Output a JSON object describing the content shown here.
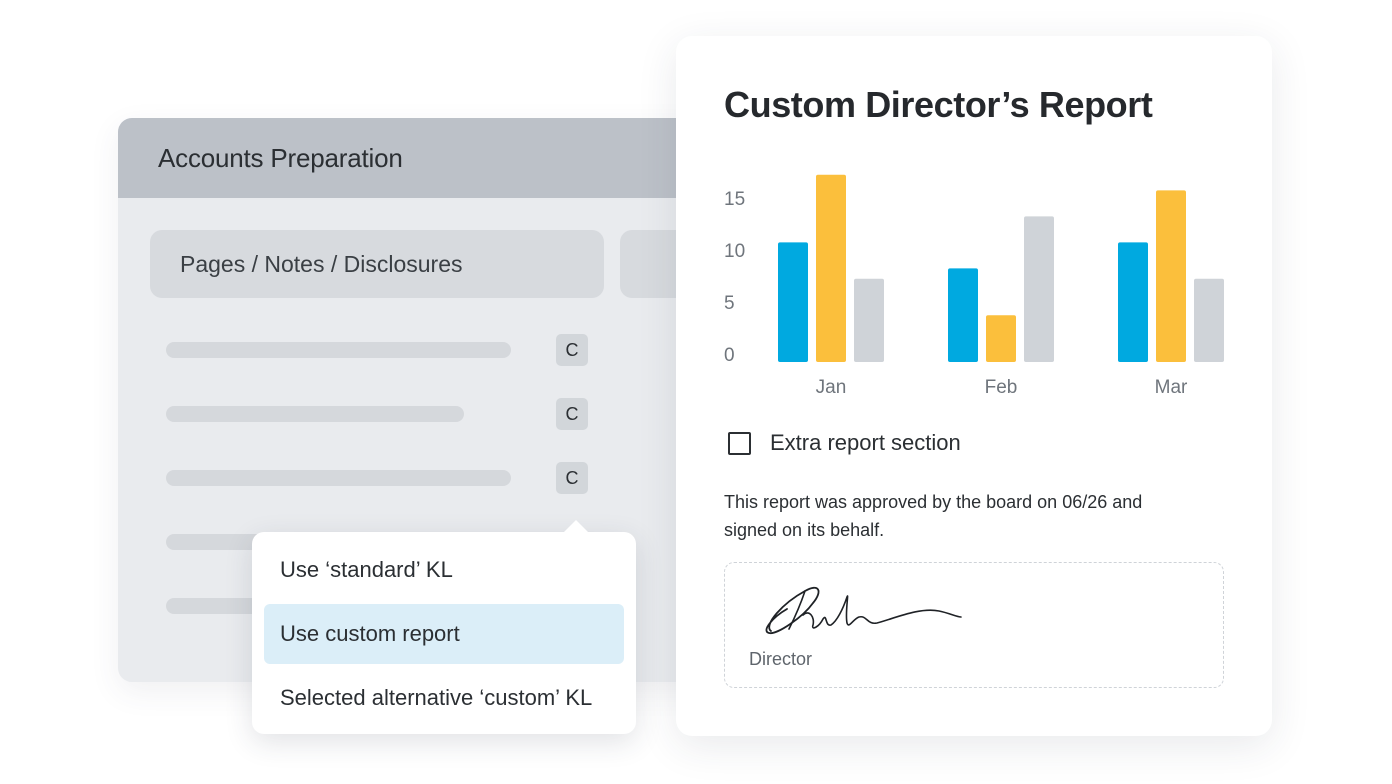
{
  "accounts_panel": {
    "title": "Accounts Preparation",
    "tab_label": "Pages / Notes / Disclosures",
    "badges": [
      "C",
      "C",
      "C"
    ]
  },
  "dropdown": {
    "items": [
      {
        "label": "Use ‘standard’ KL",
        "selected": false
      },
      {
        "label": "Use custom report",
        "selected": true
      },
      {
        "label": "Selected alternative ‘custom’ KL",
        "selected": false
      }
    ]
  },
  "report": {
    "title": "Custom Director’s Report",
    "checkbox_label": "Extra report section",
    "checkbox_checked": false,
    "approval_text": "This report was approved by the board on 06/26 and signed on its behalf.",
    "signature_label": "Director"
  },
  "colors": {
    "series_blue": "#00a9e0",
    "series_yellow": "#fbbf3c",
    "series_gray": "#cfd3d8",
    "selected_item_bg": "#dbeef8"
  },
  "chart_data": {
    "type": "bar",
    "categories": [
      "Jan",
      "Feb",
      "Mar"
    ],
    "series": [
      {
        "values": [
          11.5,
          9,
          11.5
        ]
      },
      {
        "values": [
          18,
          4.5,
          16.5
        ]
      },
      {
        "values": [
          8,
          14,
          8
        ]
      }
    ],
    "yticks": [
      0,
      5,
      10,
      15
    ],
    "ylim": [
      0,
      18
    ],
    "grid": false
  }
}
